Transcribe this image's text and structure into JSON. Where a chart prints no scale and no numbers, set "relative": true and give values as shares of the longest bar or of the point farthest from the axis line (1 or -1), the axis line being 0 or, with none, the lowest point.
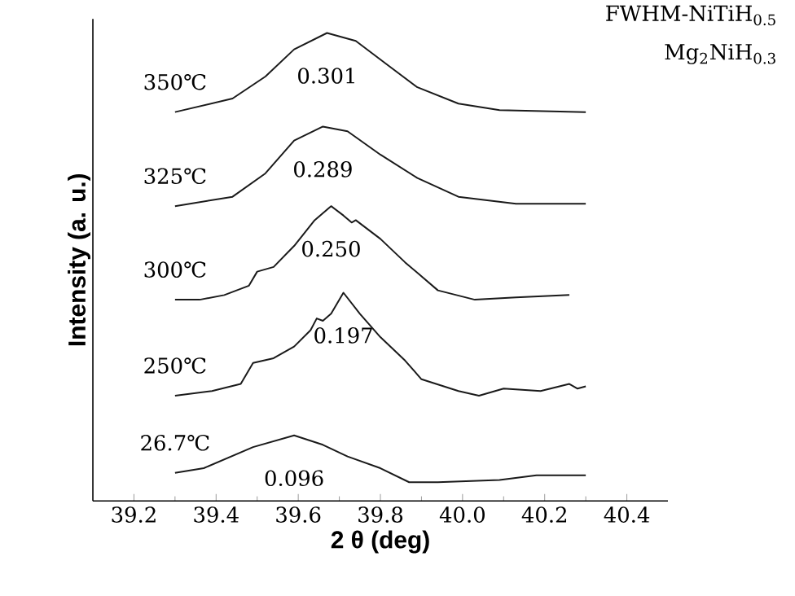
{
  "chart_data": {
    "type": "line",
    "relative": true,
    "xlabel": "2 θ (deg)",
    "ylabel": "Intensity (a. u.)",
    "xlim": [
      39.1,
      40.5
    ],
    "xticks": [
      39.2,
      39.4,
      39.6,
      39.8,
      {
        "value": 40.0,
        "label": "40.0"
      },
      40.2,
      40.4
    ],
    "series": [
      {
        "name": "26.7℃",
        "color": "#1a1a1a",
        "x": [
          39.3,
          39.37,
          39.49,
          39.59,
          39.66,
          39.72,
          39.8,
          39.87,
          39.94,
          40.09,
          40.18,
          40.3
        ],
        "values": [
          0.06,
          0.07,
          0.115,
          0.14,
          0.12,
          0.095,
          0.07,
          0.04,
          0.04,
          0.045,
          0.055,
          0.055
        ]
      },
      {
        "name": "250℃",
        "color": "#1a1a1a",
        "x": [
          39.3,
          39.39,
          39.46,
          39.49,
          39.54,
          39.59,
          39.63,
          39.645,
          39.66,
          39.68,
          39.71,
          39.75,
          39.8,
          39.86,
          39.9,
          39.99,
          40.04,
          40.1,
          40.19,
          40.26,
          40.28,
          40.3
        ],
        "values": [
          0.225,
          0.235,
          0.25,
          0.295,
          0.305,
          0.33,
          0.365,
          0.39,
          0.385,
          0.4,
          0.445,
          0.4,
          0.35,
          0.3,
          0.26,
          0.235,
          0.225,
          0.24,
          0.235,
          0.25,
          0.24,
          0.245
        ]
      },
      {
        "name": "300℃",
        "color": "#1a1a1a",
        "x": [
          39.3,
          39.36,
          39.42,
          39.48,
          39.5,
          39.54,
          39.59,
          39.64,
          39.68,
          39.71,
          39.73,
          39.74,
          39.8,
          39.86,
          39.94,
          40.03,
          40.13,
          40.26
        ],
        "values": [
          0.43,
          0.43,
          0.44,
          0.46,
          0.49,
          0.5,
          0.545,
          0.6,
          0.63,
          0.61,
          0.595,
          0.6,
          0.56,
          0.51,
          0.45,
          0.43,
          0.435,
          0.44
        ]
      },
      {
        "name": "325℃",
        "color": "#1a1a1a",
        "x": [
          39.3,
          39.44,
          39.52,
          39.59,
          39.66,
          39.72,
          39.8,
          39.89,
          39.99,
          40.13,
          40.3
        ],
        "values": [
          0.63,
          0.65,
          0.7,
          0.77,
          0.8,
          0.79,
          0.74,
          0.69,
          0.65,
          0.635,
          0.635
        ]
      },
      {
        "name": "350℃",
        "color": "#1a1a1a",
        "x": [
          39.3,
          39.44,
          39.52,
          39.59,
          39.67,
          39.74,
          39.82,
          39.89,
          39.99,
          40.09,
          40.3
        ],
        "values": [
          0.831,
          0.86,
          0.907,
          0.965,
          1.0,
          0.983,
          0.93,
          0.884,
          0.849,
          0.835,
          0.831
        ]
      }
    ],
    "annotations": [
      "0.096",
      "0.197",
      "0.250",
      "0.289",
      "0.301",
      "FWHM-NiTiH$_{0.5}$",
      "Mg$_{2}$NiH$_{0.3}$"
    ]
  }
}
